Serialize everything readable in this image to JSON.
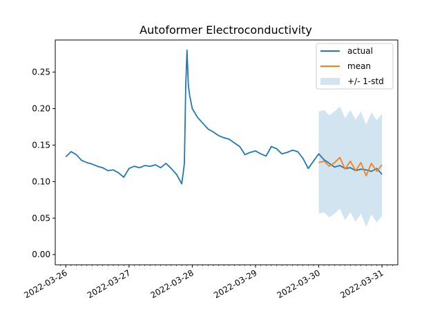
{
  "chart_data": {
    "type": "line",
    "title": "Autoformer Electroconductivity",
    "xlabel": "",
    "ylabel": "",
    "x_start": "2022-03-26 00:00",
    "x_end": "2022-03-31 00:00",
    "xlim": [
      "2022-03-25 20:00",
      "2022-03-31 06:00"
    ],
    "ylim": [
      -0.014,
      0.294
    ],
    "x_ticks": [
      "2022-03-26",
      "2022-03-27",
      "2022-03-28",
      "2022-03-29",
      "2022-03-30",
      "2022-03-31"
    ],
    "y_ticks": [
      "0.00",
      "0.05",
      "0.10",
      "0.15",
      "0.20",
      "0.25"
    ],
    "legend_position": "top-right",
    "grid": false,
    "series": [
      {
        "name": "actual",
        "color": "#1f77b4",
        "points": [
          [
            "2022-03-26 00:00",
            0.134
          ],
          [
            "2022-03-26 02:00",
            0.141
          ],
          [
            "2022-03-26 04:00",
            0.137
          ],
          [
            "2022-03-26 06:00",
            0.129
          ],
          [
            "2022-03-26 08:00",
            0.126
          ],
          [
            "2022-03-26 10:00",
            0.124
          ],
          [
            "2022-03-26 12:00",
            0.121
          ],
          [
            "2022-03-26 14:00",
            0.119
          ],
          [
            "2022-03-26 16:00",
            0.115
          ],
          [
            "2022-03-26 18:00",
            0.116
          ],
          [
            "2022-03-26 20:00",
            0.112
          ],
          [
            "2022-03-26 22:00",
            0.106
          ],
          [
            "2022-03-27 00:00",
            0.118
          ],
          [
            "2022-03-27 02:00",
            0.121
          ],
          [
            "2022-03-27 04:00",
            0.119
          ],
          [
            "2022-03-27 06:00",
            0.122
          ],
          [
            "2022-03-27 08:00",
            0.121
          ],
          [
            "2022-03-27 10:00",
            0.123
          ],
          [
            "2022-03-27 12:00",
            0.119
          ],
          [
            "2022-03-27 14:00",
            0.125
          ],
          [
            "2022-03-27 16:00",
            0.118
          ],
          [
            "2022-03-27 18:00",
            0.11
          ],
          [
            "2022-03-27 20:00",
            0.097
          ],
          [
            "2022-03-27 20:30",
            0.11
          ],
          [
            "2022-03-27 21:00",
            0.125
          ],
          [
            "2022-03-27 21:30",
            0.23
          ],
          [
            "2022-03-27 22:00",
            0.28
          ],
          [
            "2022-03-27 22:30",
            0.232
          ],
          [
            "2022-03-27 23:00",
            0.218
          ],
          [
            "2022-03-28 00:00",
            0.2
          ],
          [
            "2022-03-28 02:00",
            0.188
          ],
          [
            "2022-03-28 04:00",
            0.18
          ],
          [
            "2022-03-28 06:00",
            0.172
          ],
          [
            "2022-03-28 08:00",
            0.168
          ],
          [
            "2022-03-28 10:00",
            0.163
          ],
          [
            "2022-03-28 12:00",
            0.16
          ],
          [
            "2022-03-28 14:00",
            0.158
          ],
          [
            "2022-03-28 16:00",
            0.153
          ],
          [
            "2022-03-28 18:00",
            0.148
          ],
          [
            "2022-03-28 20:00",
            0.137
          ],
          [
            "2022-03-28 22:00",
            0.14
          ],
          [
            "2022-03-29 00:00",
            0.142
          ],
          [
            "2022-03-29 02:00",
            0.138
          ],
          [
            "2022-03-29 04:00",
            0.135
          ],
          [
            "2022-03-29 06:00",
            0.148
          ],
          [
            "2022-03-29 08:00",
            0.145
          ],
          [
            "2022-03-29 10:00",
            0.138
          ],
          [
            "2022-03-29 12:00",
            0.14
          ],
          [
            "2022-03-29 14:00",
            0.143
          ],
          [
            "2022-03-29 16:00",
            0.141
          ],
          [
            "2022-03-29 18:00",
            0.132
          ],
          [
            "2022-03-29 20:00",
            0.118
          ],
          [
            "2022-03-29 22:00",
            0.128
          ],
          [
            "2022-03-30 00:00",
            0.138
          ],
          [
            "2022-03-30 02:00",
            0.13
          ],
          [
            "2022-03-30 04:00",
            0.125
          ],
          [
            "2022-03-30 06:00",
            0.12
          ],
          [
            "2022-03-30 08:00",
            0.122
          ],
          [
            "2022-03-30 10:00",
            0.118
          ],
          [
            "2022-03-30 12:00",
            0.119
          ],
          [
            "2022-03-30 14:00",
            0.115
          ],
          [
            "2022-03-30 16:00",
            0.117
          ],
          [
            "2022-03-30 18:00",
            0.116
          ],
          [
            "2022-03-30 20:00",
            0.114
          ],
          [
            "2022-03-30 22:00",
            0.118
          ],
          [
            "2022-03-31 00:00",
            0.11
          ]
        ]
      },
      {
        "name": "mean",
        "color": "#ff7f0e",
        "points": [
          [
            "2022-03-30 00:00",
            0.126
          ],
          [
            "2022-03-30 02:00",
            0.128
          ],
          [
            "2022-03-30 04:00",
            0.121
          ],
          [
            "2022-03-30 06:00",
            0.126
          ],
          [
            "2022-03-30 08:00",
            0.133
          ],
          [
            "2022-03-30 10:00",
            0.117
          ],
          [
            "2022-03-30 12:00",
            0.128
          ],
          [
            "2022-03-30 14:00",
            0.115
          ],
          [
            "2022-03-30 16:00",
            0.126
          ],
          [
            "2022-03-30 18:00",
            0.108
          ],
          [
            "2022-03-30 20:00",
            0.125
          ],
          [
            "2022-03-30 22:00",
            0.114
          ],
          [
            "2022-03-31 00:00",
            0.123
          ]
        ]
      }
    ],
    "band": {
      "name": "+/- 1-std",
      "color": "#1f77b4",
      "opacity": 0.2,
      "std": 0.07,
      "center_series": "mean"
    }
  }
}
